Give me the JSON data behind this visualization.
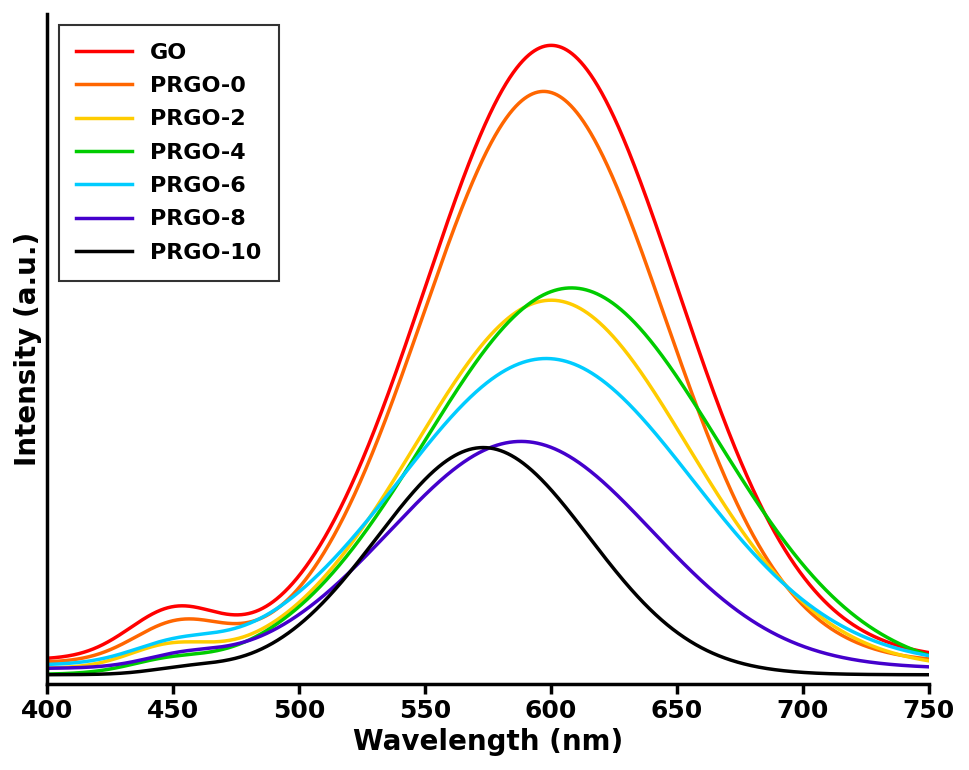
{
  "title": "",
  "xlabel": "Wavelength (nm)",
  "ylabel": "Intensity (a.u.)",
  "xlim": [
    400,
    750
  ],
  "series": [
    {
      "label": "GO",
      "color": "#ff0000",
      "peaks": [
        {
          "mu": 600,
          "sigma": 50,
          "amp": 1.0
        },
        {
          "mu": 450,
          "sigma": 18,
          "amp": 0.075
        }
      ],
      "baseline": 0.03
    },
    {
      "label": "PRGO-0",
      "color": "#ff6600",
      "peaks": [
        {
          "mu": 597,
          "sigma": 48,
          "amp": 0.93
        },
        {
          "mu": 452,
          "sigma": 18,
          "amp": 0.06
        }
      ],
      "baseline": 0.025
    },
    {
      "label": "PRGO-2",
      "color": "#ffcc00",
      "peaks": [
        {
          "mu": 600,
          "sigma": 54,
          "amp": 0.6
        },
        {
          "mu": 448,
          "sigma": 16,
          "amp": 0.03
        }
      ],
      "baseline": 0.015
    },
    {
      "label": "PRGO-4",
      "color": "#00cc00",
      "peaks": [
        {
          "mu": 608,
          "sigma": 58,
          "amp": 0.63
        },
        {
          "mu": 447,
          "sigma": 15,
          "amp": 0.015
        }
      ],
      "baseline": 0.005
    },
    {
      "label": "PRGO-6",
      "color": "#00ccff",
      "peaks": [
        {
          "mu": 598,
          "sigma": 58,
          "amp": 0.5
        },
        {
          "mu": 450,
          "sigma": 17,
          "amp": 0.025
        }
      ],
      "baseline": 0.02
    },
    {
      "label": "PRGO-8",
      "color": "#4400cc",
      "peaks": [
        {
          "mu": 588,
          "sigma": 52,
          "amp": 0.37
        },
        {
          "mu": 453,
          "sigma": 15,
          "amp": 0.015
        }
      ],
      "baseline": 0.015
    },
    {
      "label": "PRGO-10",
      "color": "#000000",
      "peaks": [
        {
          "mu": 573,
          "sigma": 42,
          "amp": 0.37
        },
        {
          "mu": 455,
          "sigma": 14,
          "amp": 0.008
        }
      ],
      "baseline": 0.005
    }
  ],
  "legend_loc": "upper left",
  "linewidth": 2.5,
  "background_color": "#ffffff",
  "xlabel_fontsize": 20,
  "ylabel_fontsize": 20,
  "tick_fontsize": 18,
  "legend_fontsize": 16
}
